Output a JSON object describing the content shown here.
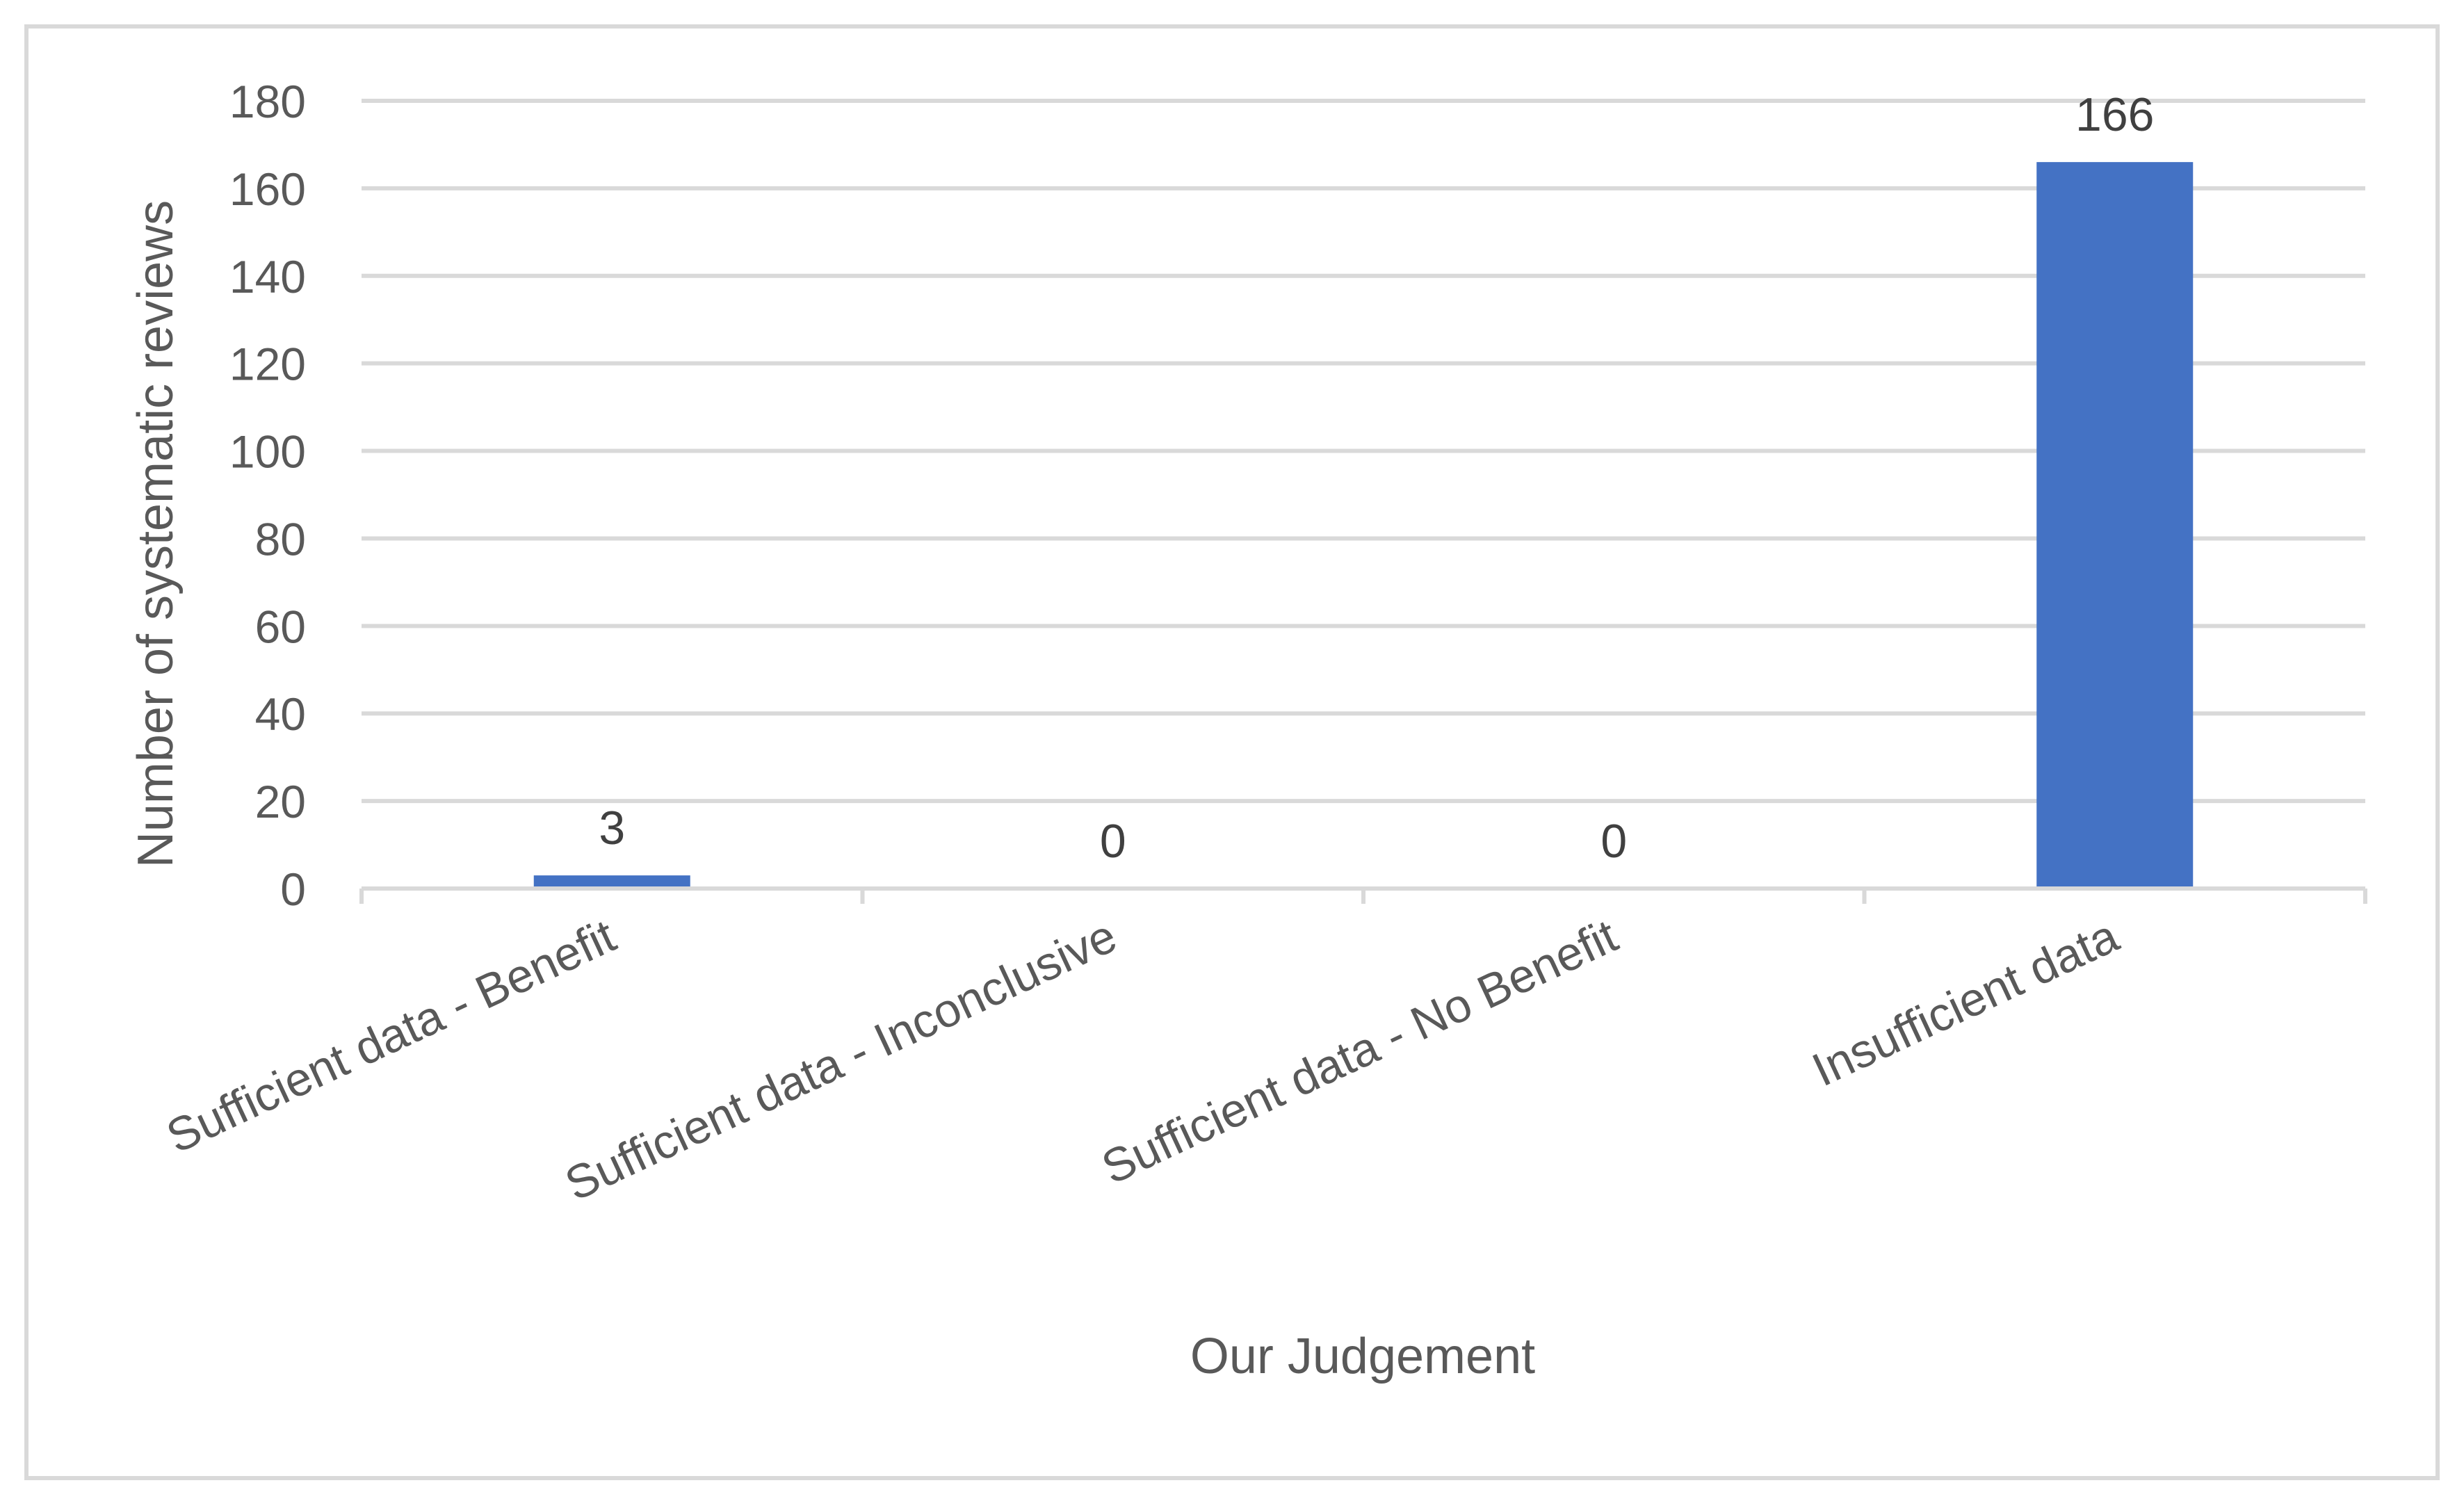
{
  "chart_data": {
    "type": "bar",
    "title": "",
    "xlabel": "Our Judgement",
    "ylabel": "Number of systematic reviews",
    "categories": [
      "Sufficient data - Benefit",
      "Sufficient data - Inconclusive",
      "Sufficient data - No Benefit",
      "Insufficient data"
    ],
    "values": [
      3,
      0,
      0,
      166
    ],
    "data_labels": [
      "3",
      "0",
      "0",
      "166"
    ],
    "yticks": [
      "0",
      "20",
      "40",
      "60",
      "80",
      "100",
      "120",
      "140",
      "160",
      "180"
    ],
    "ylim": [
      0,
      180
    ],
    "grid": true,
    "legend": "none",
    "colors": {
      "bar": "#4472C4",
      "grid": "#D9D9D9",
      "text": "#595959",
      "border": "#D9D9D9"
    }
  }
}
